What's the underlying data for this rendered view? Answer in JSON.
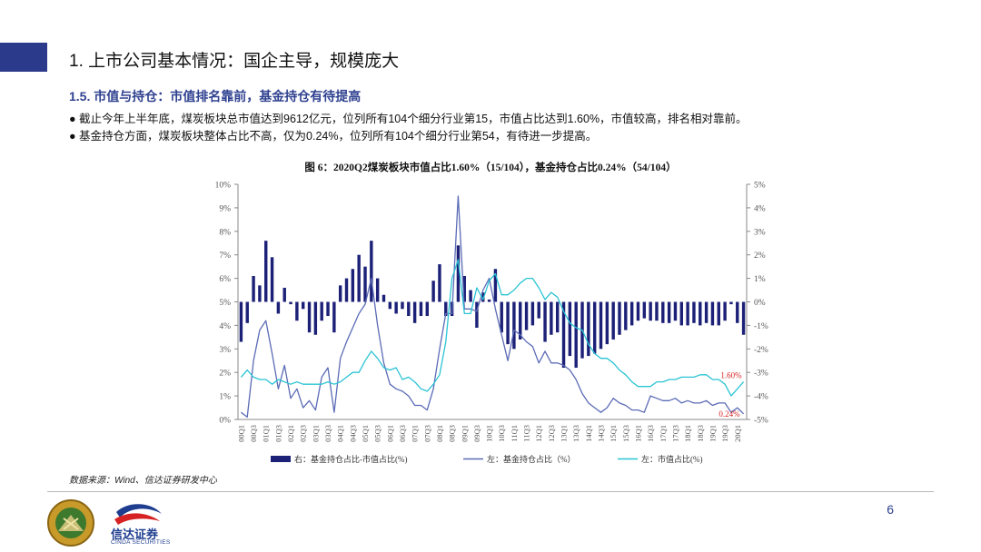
{
  "header": {
    "title": "1. 上市公司基本情况：国企主导，规模庞大",
    "subtitle": "1.5. 市值与持仓：市值排名靠前，基金持仓有待提高",
    "bullets": [
      "截止今年上半年底，煤炭板块总市值达到9612亿元，位列所有104个细分行业第15，市值占比达到1.60%，市值较高，排名相对靠前。",
      "基金持仓方面，煤炭板块整体占比不高，仅为0.24%，位列所有104个细分行业第54，有待进一步提高。"
    ],
    "bullet_symbol": "●"
  },
  "figure": {
    "title": "图 6：2020Q2煤炭板块市值占比1.60%（15/104），基金持仓占比0.24%（54/104）"
  },
  "chart_data": {
    "type": "bar+line",
    "x": [
      "00Q1",
      "00Q2",
      "00Q3",
      "00Q4",
      "01Q1",
      "01Q2",
      "01Q3",
      "01Q4",
      "02Q1",
      "02Q2",
      "02Q3",
      "02Q4",
      "03Q1",
      "03Q2",
      "03Q3",
      "03Q4",
      "04Q1",
      "04Q2",
      "04Q3",
      "04Q4",
      "05Q1",
      "05Q2",
      "05Q3",
      "05Q4",
      "06Q1",
      "06Q2",
      "06Q3",
      "06Q4",
      "07Q1",
      "07Q2",
      "07Q3",
      "07Q4",
      "08Q1",
      "08Q2",
      "08Q3",
      "08Q4",
      "09Q1",
      "09Q2",
      "09Q3",
      "09Q4",
      "10Q1",
      "10Q2",
      "10Q3",
      "10Q4",
      "11Q1",
      "11Q2",
      "11Q3",
      "11Q4",
      "12Q1",
      "12Q2",
      "12Q3",
      "12Q4",
      "13Q1",
      "13Q2",
      "13Q3",
      "13Q4",
      "14Q1",
      "14Q2",
      "14Q3",
      "14Q4",
      "15Q1",
      "15Q2",
      "15Q3",
      "15Q4",
      "16Q1",
      "16Q2",
      "16Q3",
      "16Q4",
      "17Q1",
      "17Q2",
      "17Q3",
      "17Q4",
      "18Q1",
      "18Q2",
      "18Q3",
      "18Q4",
      "19Q1",
      "19Q2",
      "19Q3",
      "19Q4",
      "20Q1",
      "20Q2"
    ],
    "x_tick_labels": [
      "00Q1",
      "00Q3",
      "01Q1",
      "01Q3",
      "02Q1",
      "02Q3",
      "03Q1",
      "03Q3",
      "04Q1",
      "04Q3",
      "05Q1",
      "05Q3",
      "06Q1",
      "06Q3",
      "07Q1",
      "07Q3",
      "08Q1",
      "08Q3",
      "09Q1",
      "09Q3",
      "10Q1",
      "10Q3",
      "11Q1",
      "11Q3",
      "12Q1",
      "12Q3",
      "13Q1",
      "13Q3",
      "14Q1",
      "14Q3",
      "15Q1",
      "15Q3",
      "16Q1",
      "16Q3",
      "17Q1",
      "17Q3",
      "18Q1",
      "18Q3",
      "19Q1",
      "19Q3",
      "20Q1"
    ],
    "left_axis": {
      "ylim": [
        0,
        10
      ],
      "ticks": [
        "0%",
        "1%",
        "2%",
        "3%",
        "4%",
        "5%",
        "6%",
        "7%",
        "8%",
        "9%",
        "10%"
      ]
    },
    "right_axis": {
      "ylim": [
        -5,
        5
      ],
      "ticks": [
        "-5%",
        "-4%",
        "-3%",
        "-2%",
        "-1%",
        "0%",
        "1%",
        "2%",
        "3%",
        "4%",
        "5%"
      ]
    },
    "series": [
      {
        "name": "右：基金持仓占比-市值占比(%)",
        "type": "bar",
        "axis": "right",
        "color": "#1c2177",
        "values": [
          -1.7,
          -0.9,
          1.1,
          0.7,
          2.6,
          1.9,
          -0.5,
          0.6,
          -0.1,
          -0.8,
          -0.3,
          -1.3,
          -1.4,
          -0.8,
          -0.6,
          -1.3,
          0.7,
          1.0,
          1.4,
          2.0,
          1.5,
          2.6,
          1.0,
          0.3,
          -0.3,
          -0.5,
          -0.3,
          -0.6,
          -0.9,
          -0.6,
          -0.6,
          0.9,
          1.6,
          -0.6,
          -0.6,
          2.4,
          1.1,
          0.5,
          -1.1,
          0.4,
          0.1,
          1.4,
          -1.3,
          -1.8,
          -2.0,
          -1.6,
          -1.2,
          -1.0,
          -0.7,
          -1.7,
          -1.4,
          -1.3,
          -2.8,
          -2.3,
          -2.8,
          -2.4,
          -2.3,
          -2.2,
          -2.0,
          -1.8,
          -1.6,
          -1.4,
          -1.2,
          -1.0,
          -0.8,
          -0.7,
          -0.8,
          -0.8,
          -0.9,
          -0.9,
          -0.8,
          -1.0,
          -1.0,
          -0.9,
          -1.0,
          -0.9,
          -1.0,
          -1.0,
          -0.8,
          -0.1,
          -0.9,
          -1.4
        ]
      },
      {
        "name": "左：基金持仓占比（%）",
        "type": "line",
        "axis": "left",
        "color": "#5b6bb5",
        "values": [
          0.3,
          0.1,
          2.5,
          3.8,
          4.2,
          2.8,
          1.3,
          2.3,
          0.9,
          1.3,
          0.5,
          0.8,
          0.4,
          1.8,
          2.2,
          0.3,
          2.6,
          3.3,
          3.9,
          4.5,
          4.9,
          6.0,
          4.0,
          2.4,
          1.5,
          1.3,
          1.2,
          1.0,
          0.6,
          0.6,
          0.4,
          1.3,
          3.0,
          4.5,
          4.5,
          9.5,
          4.7,
          4.7,
          4.6,
          5.5,
          6.0,
          4.7,
          3.6,
          2.5,
          3.8,
          3.6,
          3.3,
          3.1,
          2.4,
          2.9,
          2.4,
          2.4,
          2.3,
          2.1,
          1.7,
          1.1,
          0.7,
          0.5,
          0.3,
          0.5,
          0.9,
          0.7,
          0.6,
          0.4,
          0.4,
          0.3,
          1.0,
          0.9,
          0.8,
          0.8,
          0.9,
          0.7,
          0.8,
          0.7,
          0.7,
          0.8,
          0.6,
          0.7,
          0.7,
          0.3,
          0.5,
          0.24
        ]
      },
      {
        "name": "左：市值占比(%)",
        "type": "line",
        "axis": "left",
        "color": "#2bc4d4",
        "values": [
          1.8,
          2.1,
          1.8,
          1.7,
          1.7,
          1.5,
          1.7,
          1.6,
          1.5,
          1.6,
          1.5,
          1.5,
          1.5,
          1.5,
          1.6,
          1.5,
          1.6,
          1.8,
          2.0,
          2.0,
          2.5,
          2.9,
          2.6,
          2.2,
          2.1,
          2.2,
          1.7,
          1.8,
          1.6,
          1.3,
          1.2,
          1.5,
          1.9,
          3.3,
          6.0,
          6.8,
          4.5,
          4.5,
          5.6,
          5.1,
          5.9,
          6.2,
          5.3,
          5.3,
          5.5,
          5.8,
          6.0,
          6.0,
          5.6,
          5.1,
          5.4,
          5.2,
          4.6,
          4.1,
          3.9,
          3.8,
          3.2,
          2.8,
          2.6,
          2.6,
          2.4,
          2.1,
          1.9,
          1.6,
          1.4,
          1.4,
          1.4,
          1.6,
          1.6,
          1.7,
          1.7,
          1.8,
          1.8,
          1.8,
          1.9,
          1.9,
          1.7,
          1.7,
          1.5,
          1.0,
          1.3,
          1.6
        ]
      }
    ],
    "annotations": [
      {
        "text": "1.60%",
        "color": "#d62222"
      },
      {
        "text": "0.24%",
        "color": "#d62222"
      }
    ],
    "legend": {
      "placement": "bottom",
      "items": [
        "右：基金持仓占比-市值占比(%)",
        "左：基金持仓占比（%）",
        "左：市值占比(%)"
      ]
    }
  },
  "footer": {
    "source": "数据来源：Wind、信达证券研发中心",
    "page_number": "6",
    "company_name": "信达证券",
    "company_name_en": "CINDA SECURITIES"
  },
  "colors": {
    "accent": "#2b3a8a",
    "subtitle": "#2f4190",
    "bar": "#1c2177",
    "line_fund": "#5b6bb5",
    "line_mktcap": "#2bc4d4",
    "annotation": "#d62222"
  }
}
